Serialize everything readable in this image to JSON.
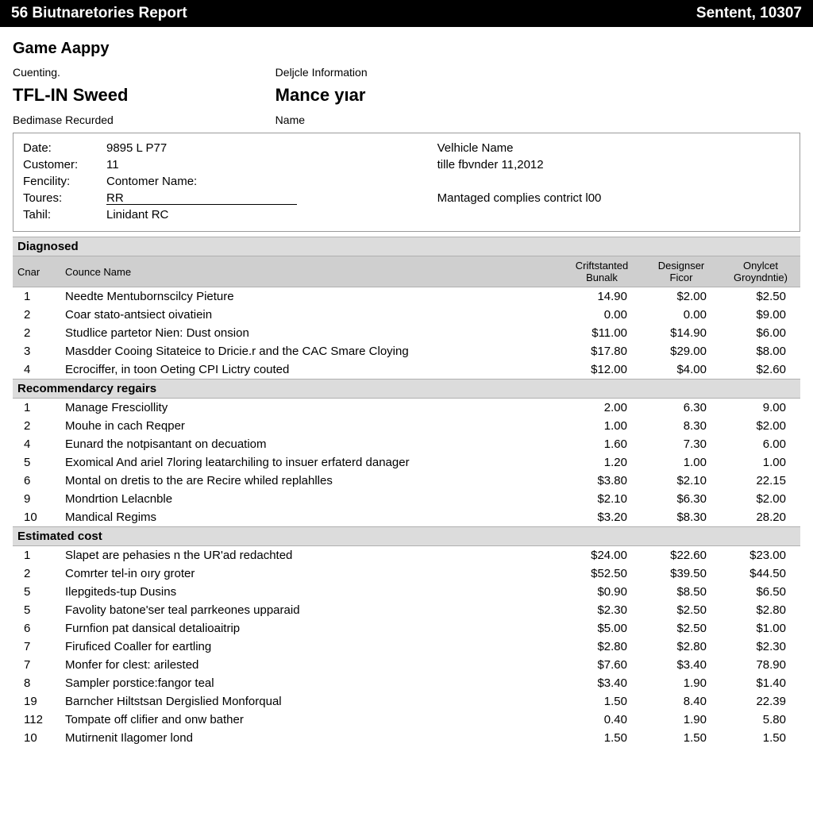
{
  "titlebar": {
    "left": "56 Biutnaretories Report",
    "right": "Sentent, 10307"
  },
  "header": {
    "app_title": "Game Aappy",
    "col1_label": "Cuenting.",
    "col1_big": "TFL-IN Sweed",
    "col1_sub": "Bedimase Recurded",
    "col2_label": "Deljcle Information",
    "col2_big": "Mance yıar",
    "col2_sub": "Name"
  },
  "info": {
    "left": [
      {
        "lbl": "Date:",
        "val": "9895 L P77"
      },
      {
        "lbl": "Customer:",
        "val": "11"
      },
      {
        "lbl": "Fencility:",
        "val": "Contomer Name:"
      },
      {
        "lbl": "Toures:",
        "val": "RR",
        "underline": true
      },
      {
        "lbl": "Tahil:",
        "val": "Linidant RC"
      }
    ],
    "right": [
      {
        "text": "Velhicle Name"
      },
      {
        "text": "tille fbvnder 11,2012"
      },
      {
        "text": ""
      },
      {
        "text": "Mantaged complies contrict l00"
      }
    ]
  },
  "columns": {
    "c1": "Cnar",
    "c2": "Counce Name",
    "c3": "Criftstanted Bunalk",
    "c4": "Designser Ficor",
    "c5": "Onylcet Groyndntie)"
  },
  "sections": [
    {
      "title": "Diagnosed",
      "show_headers": true,
      "rows": [
        {
          "idx": "1",
          "name": "Needte Mentubornscilcy Pieture",
          "v1": "14.90",
          "v2": "$2.00",
          "v3": "$2.50"
        },
        {
          "idx": "2",
          "name": "Coar stato-antsiect oivatiein",
          "v1": "0.00",
          "v2": "0.00",
          "v3": "$9.00"
        },
        {
          "idx": "2",
          "name": "Studlice partetor Nien: Dust onsion",
          "v1": "$11.00",
          "v2": "$14.90",
          "v3": "$6.00"
        },
        {
          "idx": "3",
          "name": "Masdder Cooing Sitateice to Dricie.r and the CAC Smare Cloying",
          "v1": "$17.80",
          "v2": "$29.00",
          "v3": "$8.00"
        },
        {
          "idx": "4",
          "name": "Ecrociffer, in toon Oeting CPI Lictry couted",
          "v1": "$12.00",
          "v2": "$4.00",
          "v3": "$2.60"
        }
      ]
    },
    {
      "title": "Recommendarcy regairs",
      "show_headers": false,
      "rows": [
        {
          "idx": "1",
          "name": "Manage Fresciollity",
          "v1": "2.00",
          "v2": "6.30",
          "v3": "9.00"
        },
        {
          "idx": "2",
          "name": "Mouhe in cach Reqper",
          "v1": "1.00",
          "v2": "8.30",
          "v3": "$2.00"
        },
        {
          "idx": "4",
          "name": "Eunard the notpisantant on decuatiom",
          "v1": "1.60",
          "v2": "7.30",
          "v3": "6.00"
        },
        {
          "idx": "5",
          "name": "Exomical And ariel 7loring leatarchiling to insuer erfaterd danager",
          "v1": "1.20",
          "v2": "1.00",
          "v3": "1.00"
        },
        {
          "idx": "6",
          "name": "Montal on dretis to the are Recire whiled replahlles",
          "v1": "$3.80",
          "v2": "$2.10",
          "v3": "22.15"
        },
        {
          "idx": "9",
          "name": "Mondrtion Lelacnble",
          "v1": "$2.10",
          "v2": "$6.30",
          "v3": "$2.00"
        },
        {
          "idx": "10",
          "name": "Mandical Regims",
          "v1": "$3.20",
          "v2": "$8.30",
          "v3": "28.20"
        }
      ]
    },
    {
      "title": "Estimated cost",
      "show_headers": false,
      "rows": [
        {
          "idx": "1",
          "name": "Slapet are pehasies n the UR'ad redachted",
          "v1": "$24.00",
          "v2": "$22.60",
          "v3": "$23.00"
        },
        {
          "idx": "2",
          "name": "Comrter tel-in oıry groter",
          "v1": "$52.50",
          "v2": "$39.50",
          "v3": "$44.50"
        },
        {
          "idx": "5",
          "name": "Ilepgiteds-tup Dusins",
          "v1": "$0.90",
          "v2": "$8.50",
          "v3": "$6.50"
        },
        {
          "idx": "5",
          "name": "Favolity batone'ser teal parrkeones upparaid",
          "v1": "$2.30",
          "v2": "$2.50",
          "v3": "$2.80"
        },
        {
          "idx": "6",
          "name": "Furnfion pat dansical detalioaitrip",
          "v1": "$5.00",
          "v2": "$2.50",
          "v3": "$1.00"
        },
        {
          "idx": "7",
          "name": "Firuficed Coaller for eartling",
          "v1": "$2.80",
          "v2": "$2.80",
          "v3": "$2.30"
        },
        {
          "idx": "7",
          "name": "Monfer for clest: arilested",
          "v1": "$7.60",
          "v2": "$3.40",
          "v3": "78.90"
        },
        {
          "idx": "8",
          "name": "Sampler porstice:fangor teal",
          "v1": "$3.40",
          "v2": "1.90",
          "v3": "$1.40"
        },
        {
          "idx": "19",
          "name": "Barncher Hiltstsan Dergislied Monforqual",
          "v1": "1.50",
          "v2": "8.40",
          "v3": "22.39"
        },
        {
          "idx": "112",
          "name": "Tompate off clifier and onw bather",
          "v1": "0.40",
          "v2": "1.90",
          "v3": "5.80"
        },
        {
          "idx": "10",
          "name": "Mutirnenit Ilagomer lond",
          "v1": "1.50",
          "v2": "1.50",
          "v3": "1.50"
        }
      ]
    }
  ]
}
